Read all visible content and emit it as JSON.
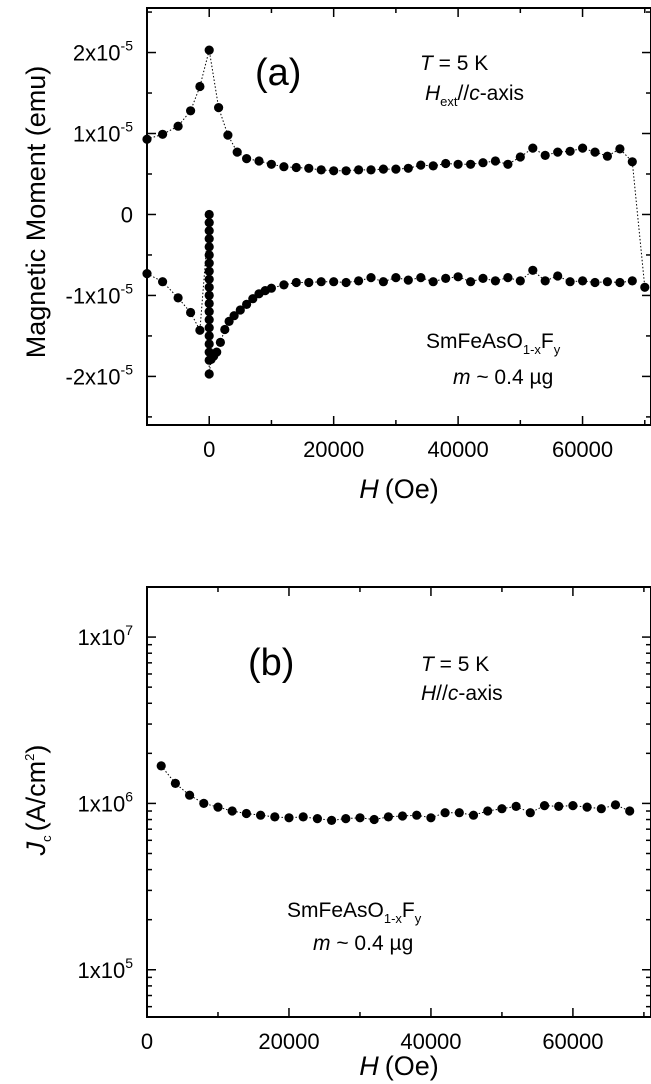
{
  "chart_data": [
    {
      "panel": "(a)",
      "type": "scatter",
      "xlabel": "H (Oe)",
      "xlabel_main": "H",
      "xlabel_unit": "(Oe)",
      "ylabel": "Magnetic Moment (emu)",
      "xlim": [
        -10000,
        71000
      ],
      "ylim": [
        -2.6e-05,
        2.55e-05
      ],
      "xticks": [
        0,
        20000,
        40000,
        60000
      ],
      "xtick_labels": [
        "0",
        "20000",
        "40000",
        "60000"
      ],
      "yticks": [
        -2e-05,
        -1e-05,
        0,
        1e-05,
        2e-05
      ],
      "ytick_labels": [
        {
          "mant": "-2x10",
          "exp": "-5"
        },
        {
          "mant": "-1x10",
          "exp": "-5"
        },
        {
          "mant": "0",
          "exp": ""
        },
        {
          "mant": "1x10",
          "exp": "-5"
        },
        {
          "mant": "2x10",
          "exp": "-5"
        }
      ],
      "annotations": {
        "temp_var": "T",
        "temp_rest": " = 5 K",
        "field_var": "H",
        "field_sub": "ext",
        "field_rest_a": "//",
        "field_axis": "c",
        "field_rest_b": "-axis",
        "sample_base": "SmFeAsO",
        "sample_sub1": "1-x",
        "sample_f": "F",
        "sample_sub2": "y",
        "mass_var": "m",
        "mass_rest": " ~ 0.4 ",
        "mass_unit": "µg"
      },
      "series": [
        {
          "branch": "upper",
          "x": [
            -10000,
            -7500,
            -5000,
            -3000,
            -1500,
            0,
            1500,
            3000,
            4500,
            6000,
            8000,
            10000,
            12000,
            14000,
            16000,
            18000,
            20000,
            22000,
            24000,
            26000,
            28000,
            30000,
            32000,
            34000,
            36000,
            38000,
            40000,
            42000,
            44000,
            46000,
            48000,
            50000,
            52000,
            54000,
            56000,
            58000,
            60000,
            62000,
            64000,
            66000,
            68000,
            70000
          ],
          "y": [
            9.3e-06,
            9.9e-06,
            1.09e-05,
            1.28e-05,
            1.58e-05,
            2.03e-05,
            1.32e-05,
            9.8e-06,
            7.7e-06,
            6.9e-06,
            6.6e-06,
            6.2e-06,
            5.9e-06,
            5.8e-06,
            5.7e-06,
            5.5e-06,
            5.4e-06,
            5.4e-06,
            5.5e-06,
            5.5e-06,
            5.6e-06,
            5.6e-06,
            5.7e-06,
            6.1e-06,
            6e-06,
            6.3e-06,
            6.2e-06,
            6.2e-06,
            6.4e-06,
            6.6e-06,
            6.2e-06,
            7.1e-06,
            8.2e-06,
            7.3e-06,
            7.7e-06,
            7.8e-06,
            8.2e-06,
            7.7e-06,
            7.2e-06,
            8.1e-06,
            6.5e-06,
            -9e-06
          ]
        },
        {
          "branch": "lower",
          "x": [
            -10000,
            -7500,
            -5000,
            -3000,
            -1500,
            0,
            0,
            0,
            0,
            0,
            0,
            0,
            0,
            0,
            0,
            0,
            0,
            0,
            0,
            0,
            0,
            0,
            0,
            0,
            0,
            300,
            700,
            1200,
            1800,
            2500,
            3200,
            4000,
            5000,
            6000,
            7000,
            8000,
            9000,
            10000,
            12000,
            14000,
            16000,
            18000,
            20000,
            22000,
            24000,
            26000,
            28000,
            30000,
            32000,
            34000,
            36000,
            38000,
            40000,
            42000,
            44000,
            46000,
            48000,
            50000,
            52000,
            54000,
            56000,
            58000,
            60000,
            62000,
            64000,
            66000,
            68000
          ],
          "y": [
            -7.3e-06,
            -8.3e-06,
            -1.03e-05,
            -1.21e-05,
            -1.43e-05,
            0,
            -1e-06,
            -2e-06,
            -3e-06,
            -4e-06,
            -5e-06,
            -6e-06,
            -7e-06,
            -8e-06,
            -9e-06,
            -1e-05,
            -1.1e-05,
            -1.2e-05,
            -1.3e-05,
            -1.4e-05,
            -1.5e-05,
            -1.6e-05,
            -1.7e-05,
            -1.8e-05,
            -1.97e-05,
            -1.79e-05,
            -1.75e-05,
            -1.7e-05,
            -1.58e-05,
            -1.42e-05,
            -1.32e-05,
            -1.25e-05,
            -1.18e-05,
            -1.11e-05,
            -1.04e-05,
            -9.8e-06,
            -9.4e-06,
            -9.1e-06,
            -8.7e-06,
            -8.4e-06,
            -8.4e-06,
            -8.3e-06,
            -8.3e-06,
            -8.4e-06,
            -8.2e-06,
            -7.8e-06,
            -8.3e-06,
            -7.8e-06,
            -8.1e-06,
            -7.8e-06,
            -8.3e-06,
            -7.9e-06,
            -7.7e-06,
            -8.3e-06,
            -7.9e-06,
            -8.2e-06,
            -7.8e-06,
            -8.2e-06,
            -6.9e-06,
            -8.2e-06,
            -7.6e-06,
            -8.3e-06,
            -8.2e-06,
            -8.4e-06,
            -8.3e-06,
            -8.4e-06,
            -8.2e-06
          ]
        }
      ]
    },
    {
      "panel": "(b)",
      "type": "scatter",
      "xlabel": "H (Oe)",
      "xlabel_main": "H",
      "xlabel_unit": "(Oe)",
      "ylabel": "J_c (A/cm^2)",
      "ylabel_var": "J",
      "ylabel_sub": "c",
      "ylabel_unit_a": "(A/cm",
      "ylabel_sup": "2",
      "ylabel_unit_b": ")",
      "yscale": "log",
      "xlim": [
        0,
        71000
      ],
      "ylim": [
        52000,
        20000000
      ],
      "xticks": [
        0,
        20000,
        40000,
        60000
      ],
      "xtick_labels": [
        "0",
        "20000",
        "40000",
        "60000"
      ],
      "yticks": [
        100000,
        1000000,
        10000000
      ],
      "ytick_labels": [
        {
          "mant": "1x10",
          "exp": "5"
        },
        {
          "mant": "1x10",
          "exp": "6"
        },
        {
          "mant": "1x10",
          "exp": "7"
        }
      ],
      "annotations": {
        "temp_var": "T",
        "temp_rest": " = 5 K",
        "field_var": "H",
        "field_rest_a": "//",
        "field_axis": "c",
        "field_rest_b": "-axis",
        "sample_base": "SmFeAsO",
        "sample_sub1": "1-x",
        "sample_f": "F",
        "sample_sub2": "y",
        "mass_var": "m",
        "mass_rest": " ~ 0.4 ",
        "mass_unit": "µg"
      },
      "series": [
        {
          "x": [
            2000,
            4000,
            6000,
            8000,
            10000,
            12000,
            14000,
            16000,
            18000,
            20000,
            22000,
            24000,
            26000,
            28000,
            30000,
            32000,
            34000,
            36000,
            38000,
            40000,
            42000,
            44000,
            46000,
            48000,
            50000,
            52000,
            54000,
            56000,
            58000,
            60000,
            62000,
            64000,
            66000,
            68000
          ],
          "y": [
            1680000,
            1320000,
            1120000,
            1000000,
            950000,
            900000,
            870000,
            850000,
            830000,
            820000,
            830000,
            810000,
            790000,
            810000,
            820000,
            800000,
            830000,
            840000,
            850000,
            820000,
            880000,
            880000,
            850000,
            900000,
            930000,
            960000,
            880000,
            970000,
            960000,
            970000,
            950000,
            930000,
            980000,
            900000
          ]
        }
      ]
    }
  ]
}
